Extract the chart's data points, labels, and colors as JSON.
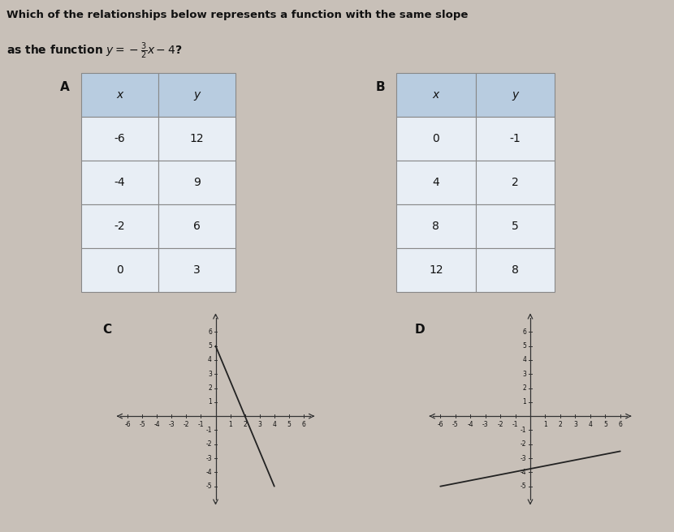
{
  "title_line1": "Which of the relationships below represents a function with the same slope",
  "title_line2": "as the function $y = -\\frac{3}{2}x - 4$?",
  "bg_color": "#c8c0b8",
  "table_bg_header": "#b8cce0",
  "table_bg_row": "#e8eef5",
  "table_border": "#888888",
  "table_A": {
    "label": "A",
    "headers": [
      "x",
      "y"
    ],
    "rows": [
      [
        -6,
        12
      ],
      [
        -4,
        9
      ],
      [
        -2,
        6
      ],
      [
        0,
        3
      ]
    ]
  },
  "table_B": {
    "label": "B",
    "headers": [
      "x",
      "y"
    ],
    "rows": [
      [
        0,
        -1
      ],
      [
        4,
        2
      ],
      [
        8,
        5
      ],
      [
        12,
        8
      ]
    ]
  },
  "graph_C": {
    "label": "C",
    "xlim": [
      -6.5,
      6.5
    ],
    "ylim": [
      -6,
      7
    ],
    "line_x": [
      0.0,
      4.0
    ],
    "line_y": [
      5.0,
      -5.0
    ],
    "xticks": [
      -6,
      -5,
      -4,
      -3,
      -2,
      -1,
      1,
      2,
      3,
      4,
      5,
      6
    ],
    "yticks": [
      -5,
      -4,
      -3,
      -2,
      -1,
      1,
      2,
      3,
      4,
      5,
      6
    ]
  },
  "graph_D": {
    "label": "D",
    "xlim": [
      -6.5,
      6.5
    ],
    "ylim": [
      -6,
      7
    ],
    "line_x": [
      -6.0,
      6.0
    ],
    "line_y": [
      -5.0,
      -2.5
    ],
    "xticks": [
      -6,
      -5,
      -4,
      -3,
      -2,
      -1,
      1,
      2,
      3,
      4,
      5,
      6
    ],
    "yticks": [
      -5,
      -4,
      -3,
      -2,
      -1,
      1,
      2,
      3,
      4,
      5,
      6
    ]
  },
  "text_color": "#111111",
  "axis_color": "#333333",
  "line_color": "#222222",
  "title_fontsize": 9.5,
  "label_fontsize": 11,
  "table_header_fontsize": 10,
  "table_data_fontsize": 10,
  "graph_tick_fontsize": 5.5
}
